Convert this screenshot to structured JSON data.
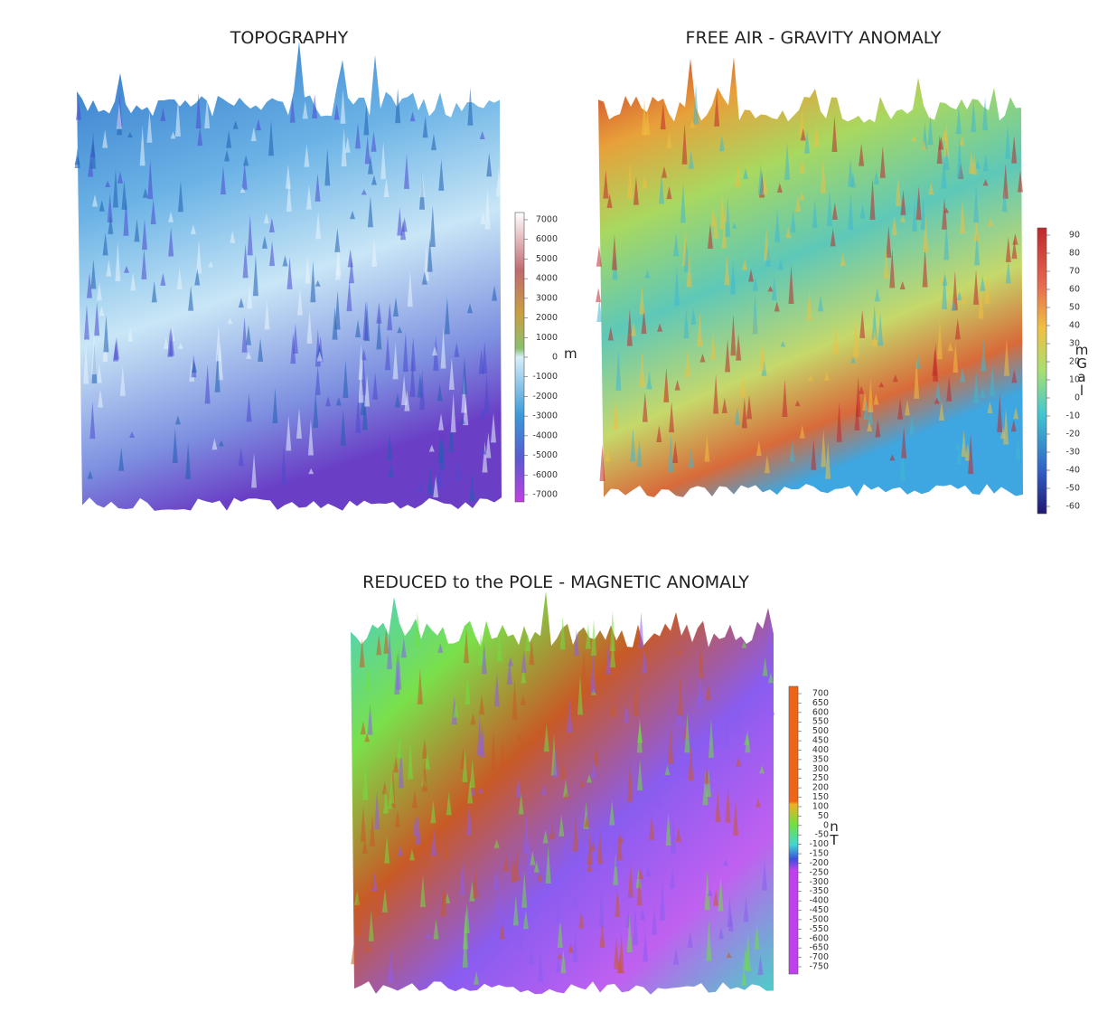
{
  "panels": [
    {
      "title": "TOPOGRAPHY",
      "colorbar": {
        "ticks": [
          "7000",
          "6000",
          "5000",
          "4000",
          "3000",
          "2000",
          "1000",
          "0",
          "-1000",
          "-2000",
          "-3000",
          "-4000",
          "-5000",
          "-6000",
          "-7000"
        ],
        "unit": "m"
      }
    },
    {
      "title": "FREE AIR - GRAVITY ANOMALY",
      "colorbar": {
        "ticks": [
          "90",
          "80",
          "70",
          "60",
          "50",
          "40",
          "30",
          "20",
          "10",
          "0",
          "-10",
          "-20",
          "-30",
          "-40",
          "-50",
          "-60"
        ],
        "unit": "mGal"
      }
    },
    {
      "title": "REDUCED to the POLE - MAGNETIC ANOMALY",
      "colorbar": {
        "ticks": [
          "700",
          "650",
          "600",
          "550",
          "500",
          "450",
          "400",
          "350",
          "300",
          "250",
          "200",
          "150",
          "100",
          "50",
          "0",
          "-50",
          "-100",
          "-150",
          "-200",
          "-250",
          "-300",
          "-350",
          "-400",
          "-450",
          "-500",
          "-550",
          "-600",
          "-650",
          "-700",
          "-750"
        ],
        "unit": "nT"
      }
    }
  ]
}
